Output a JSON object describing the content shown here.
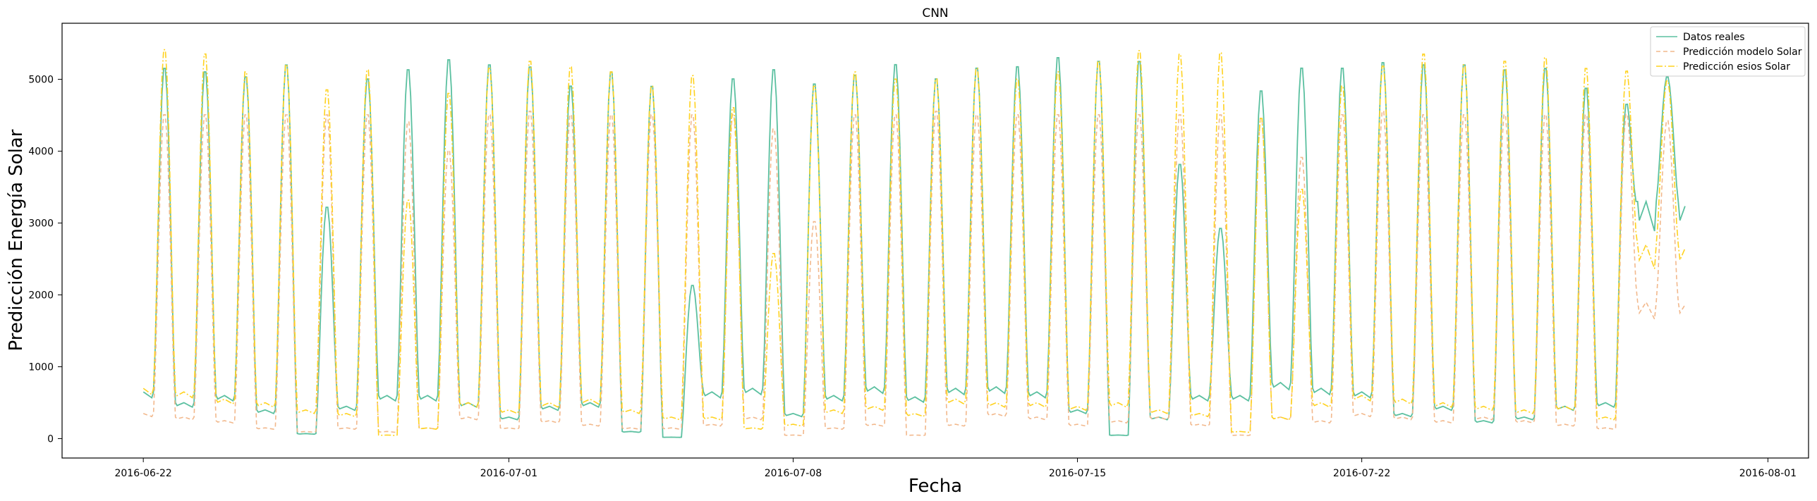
{
  "chart_data": {
    "type": "line",
    "title": "CNN",
    "xlabel": "Fecha",
    "ylabel": "Predicción Energía Solar",
    "x_start": "2016-06-22T00:00",
    "x_end": "2016-07-30T00:00",
    "xlim": [
      "2016-06-20",
      "2016-08-02"
    ],
    "ylim": [
      -270,
      5780
    ],
    "x_ticks": [
      "2016-06-22",
      "2016-07-01",
      "2016-07-08",
      "2016-07-15",
      "2016-07-22",
      "2016-08-01"
    ],
    "y_ticks": [
      0,
      1000,
      2000,
      3000,
      4000,
      5000
    ],
    "legend_position": "top-right",
    "grid": false,
    "series": [
      {
        "name": "Datos reales",
        "color": "#5bc0a0",
        "dash": "solid",
        "daily_peaks": [
          5200,
          5150,
          5080,
          5250,
          3250,
          5050,
          5180,
          5320,
          5250,
          5220,
          4950,
          5150,
          4950,
          2150,
          5050,
          5180,
          4980,
          5100,
          5250,
          5050,
          5200,
          5220,
          5350,
          5300,
          5300,
          3850,
          2950,
          4880,
          5200,
          5200,
          5280,
          5250,
          5250,
          5180,
          5200,
          4920,
          4680,
          5050
        ],
        "night_values": [
          650,
          500,
          600,
          400,
          70,
          450,
          600,
          600,
          500,
          300,
          450,
          500,
          100,
          20,
          650,
          700,
          350,
          600,
          720,
          580,
          700,
          720,
          650,
          400,
          50,
          300,
          600,
          600,
          780,
          700,
          650,
          350,
          450,
          250,
          300,
          450,
          500,
          3300
        ]
      },
      {
        "name": "Predicción modelo Solar",
        "color": "#f2b88c",
        "dash": "dashed",
        "daily_peaks": [
          4550,
          4550,
          4550,
          4550,
          4550,
          4550,
          4450,
          4050,
          4550,
          4600,
          4550,
          4550,
          4550,
          4550,
          4550,
          4350,
          3050,
          4550,
          4550,
          4600,
          4550,
          4550,
          4550,
          4550,
          4550,
          4550,
          4550,
          4500,
          3950,
          4550,
          4600,
          4550,
          4550,
          4550,
          4550,
          4550,
          4550,
          4450
        ],
        "night_values": [
          350,
          300,
          250,
          150,
          100,
          150,
          100,
          150,
          300,
          150,
          250,
          200,
          150,
          150,
          200,
          300,
          50,
          150,
          200,
          50,
          200,
          350,
          300,
          200,
          250,
          300,
          200,
          50,
          300,
          250,
          350,
          300,
          250,
          300,
          250,
          200,
          150,
          1900
        ]
      },
      {
        "name": "Predicción esios Solar",
        "color": "#ffd21f",
        "dash": "dashdot",
        "daily_peaks": [
          5460,
          5400,
          5150,
          5250,
          4900,
          5180,
          3350,
          4850,
          5200,
          5300,
          5220,
          5150,
          4950,
          5100,
          4650,
          2600,
          4950,
          5150,
          5050,
          5050,
          5200,
          5050,
          5150,
          5300,
          5450,
          5400,
          5420,
          4500,
          3500,
          4950,
          5230,
          5400,
          5250,
          5300,
          5350,
          5200,
          5150,
          5000
        ],
        "night_values": [
          700,
          650,
          550,
          500,
          400,
          350,
          50,
          150,
          500,
          400,
          500,
          550,
          400,
          300,
          300,
          150,
          200,
          400,
          450,
          350,
          550,
          500,
          500,
          450,
          500,
          400,
          350,
          100,
          300,
          500,
          600,
          550,
          500,
          450,
          400,
          450,
          300,
          2700
        ]
      }
    ]
  }
}
